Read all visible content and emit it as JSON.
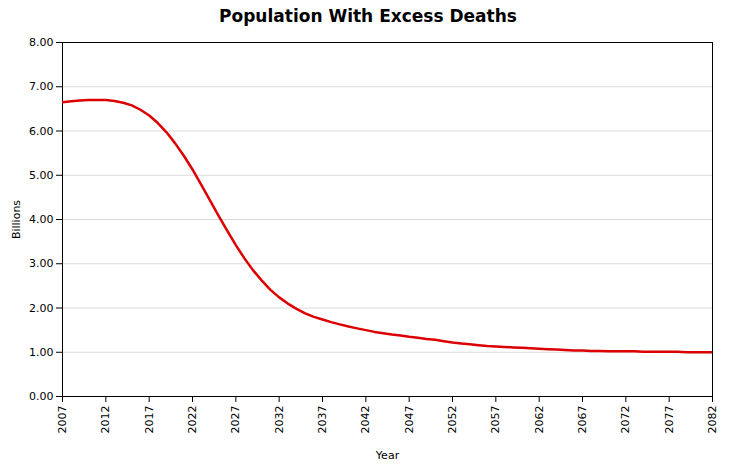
{
  "chart_data": {
    "type": "line",
    "title": "Population With Excess Deaths",
    "x_label": "Year",
    "y_label": "Billions",
    "x": [
      2007,
      2008,
      2009,
      2010,
      2011,
      2012,
      2013,
      2014,
      2015,
      2016,
      2017,
      2018,
      2019,
      2020,
      2021,
      2022,
      2023,
      2024,
      2025,
      2026,
      2027,
      2028,
      2029,
      2030,
      2031,
      2032,
      2033,
      2034,
      2035,
      2036,
      2037,
      2038,
      2039,
      2040,
      2041,
      2042,
      2043,
      2044,
      2045,
      2046,
      2047,
      2048,
      2049,
      2050,
      2051,
      2052,
      2053,
      2054,
      2055,
      2056,
      2057,
      2058,
      2059,
      2060,
      2061,
      2062,
      2063,
      2064,
      2065,
      2066,
      2067,
      2068,
      2069,
      2070,
      2071,
      2072,
      2073,
      2074,
      2075,
      2076,
      2077,
      2078,
      2079,
      2080,
      2081,
      2082
    ],
    "values": [
      6.65,
      6.67,
      6.69,
      6.7,
      6.7,
      6.7,
      6.68,
      6.64,
      6.58,
      6.48,
      6.35,
      6.18,
      5.97,
      5.72,
      5.44,
      5.13,
      4.79,
      4.44,
      4.09,
      3.75,
      3.42,
      3.12,
      2.85,
      2.62,
      2.41,
      2.24,
      2.1,
      1.98,
      1.88,
      1.8,
      1.74,
      1.68,
      1.63,
      1.58,
      1.54,
      1.5,
      1.46,
      1.43,
      1.4,
      1.38,
      1.35,
      1.33,
      1.3,
      1.28,
      1.25,
      1.22,
      1.2,
      1.18,
      1.16,
      1.14,
      1.13,
      1.12,
      1.11,
      1.1,
      1.09,
      1.08,
      1.07,
      1.06,
      1.05,
      1.04,
      1.04,
      1.03,
      1.03,
      1.02,
      1.02,
      1.02,
      1.02,
      1.01,
      1.01,
      1.01,
      1.01,
      1.01,
      1.0,
      1.0,
      1.0,
      1.0
    ],
    "color": "#dd0000",
    "xlim": [
      2007,
      2082
    ],
    "ylim": [
      0.0,
      8.0
    ],
    "xticks": [
      2007,
      2012,
      2017,
      2022,
      2027,
      2032,
      2037,
      2042,
      2047,
      2052,
      2057,
      2062,
      2067,
      2072,
      2077,
      2082
    ],
    "yticks": [
      {
        "value": 0.0,
        "label": "0.00"
      },
      {
        "value": 1.0,
        "label": "1.00"
      },
      {
        "value": 2.0,
        "label": "2.00"
      },
      {
        "value": 3.0,
        "label": "3.00"
      },
      {
        "value": 4.0,
        "label": "4.00"
      },
      {
        "value": 5.0,
        "label": "5.00"
      },
      {
        "value": 6.0,
        "label": "6.00"
      },
      {
        "value": 7.0,
        "label": "7.00"
      },
      {
        "value": 8.0,
        "label": "8.00"
      }
    ],
    "grid": true
  }
}
